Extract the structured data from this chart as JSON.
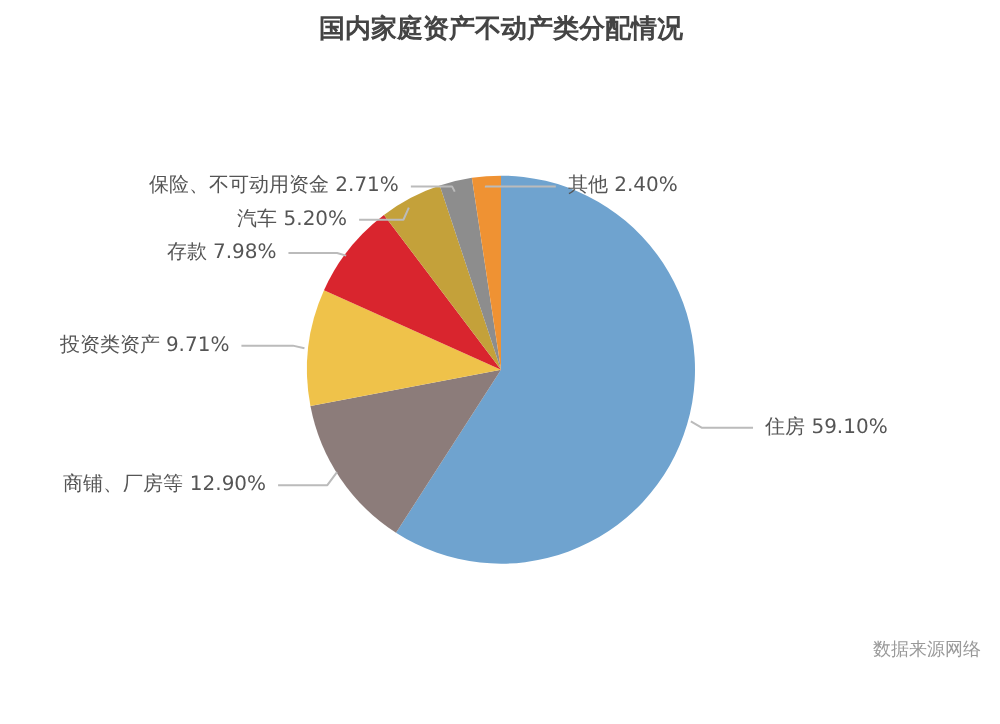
{
  "chart_data": {
    "type": "pie",
    "title": "国内家庭资产不动产类分配情况",
    "categories": [
      "住房",
      "商铺、厂房等",
      "投资类资产",
      "存款",
      "汽车",
      "保险、不可动用资金",
      "其他"
    ],
    "values": [
      59.1,
      12.9,
      9.71,
      7.98,
      5.2,
      2.71,
      2.4
    ],
    "value_labels": [
      "59.10%",
      "12.90%",
      "9.71%",
      "7.98%",
      "5.20%",
      "2.71%",
      "2.40%"
    ],
    "colors": [
      "#6fa3cf",
      "#8c7c7a",
      "#efc24a",
      "#d9252e",
      "#c4a13a",
      "#8d8d8d",
      "#ef9233"
    ],
    "annotations": [
      "数据来源网络"
    ]
  }
}
